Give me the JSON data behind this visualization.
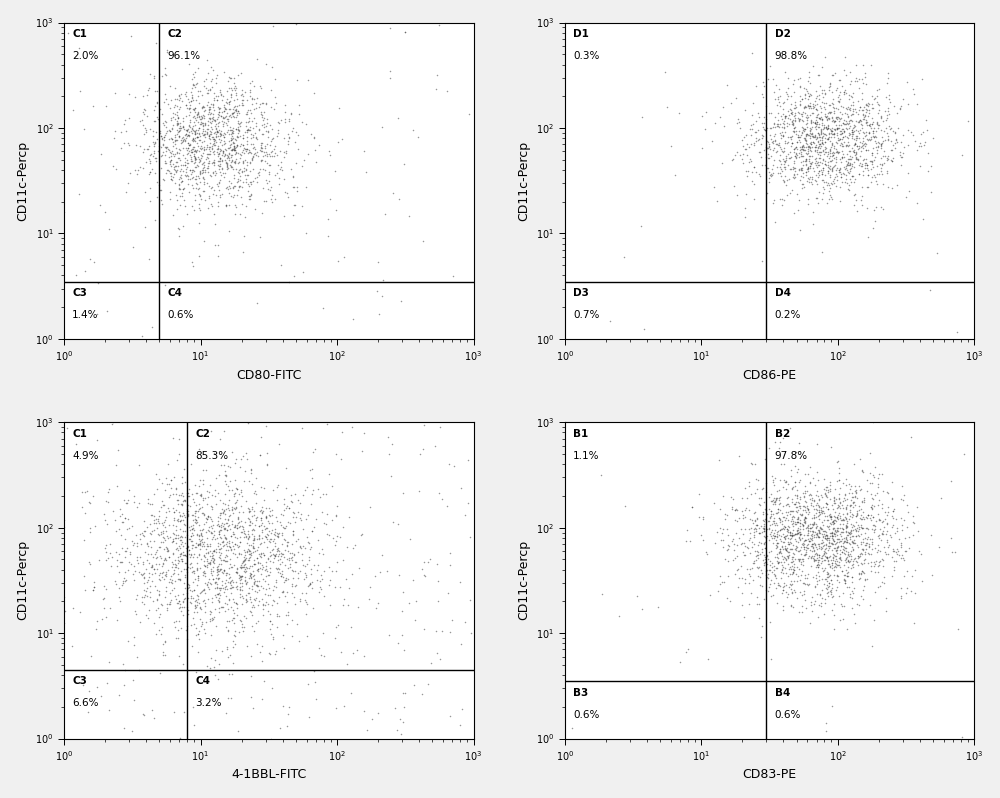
{
  "panels": [
    {
      "row": 0,
      "col": 0,
      "xlabel": "CD80-FITC",
      "ylabel": "CD11c-Percp",
      "quadrant_labels": [
        "C1",
        "C2",
        "C3",
        "C4"
      ],
      "quadrant_pcts": [
        "2.0%",
        "96.1%",
        "1.4%",
        "0.6%"
      ],
      "gate_x": 5.0,
      "gate_y": 3.5,
      "cluster_x_mean_log": 1.1,
      "cluster_x_std_log": 0.28,
      "cluster_y_mean_log": 1.85,
      "cluster_y_std_log": 0.3,
      "n_cluster": 1400,
      "n_bg": 100,
      "xlim": [
        1.0,
        1000.0
      ],
      "ylim": [
        1.0,
        1000.0
      ]
    },
    {
      "row": 0,
      "col": 1,
      "xlabel": "CD86-PE",
      "ylabel": "CD11c-Percp",
      "quadrant_labels": [
        "D1",
        "D2",
        "D3",
        "D4"
      ],
      "quadrant_pcts": [
        "0.3%",
        "98.8%",
        "0.7%",
        "0.2%"
      ],
      "gate_x": 30.0,
      "gate_y": 3.5,
      "cluster_x_mean_log": 1.9,
      "cluster_x_std_log": 0.3,
      "cluster_y_mean_log": 1.9,
      "cluster_y_std_log": 0.28,
      "n_cluster": 1480,
      "n_bg": 20,
      "xlim": [
        1.0,
        1000.0
      ],
      "ylim": [
        1.0,
        1000.0
      ]
    },
    {
      "row": 1,
      "col": 0,
      "xlabel": "4-1BBL-FITC",
      "ylabel": "CD11c-Percp",
      "quadrant_labels": [
        "C1",
        "C2",
        "C3",
        "C4"
      ],
      "quadrant_pcts": [
        "4.9%",
        "85.3%",
        "6.6%",
        "3.2%"
      ],
      "gate_x": 8.0,
      "gate_y": 4.5,
      "cluster_x_mean_log": 1.15,
      "cluster_x_std_log": 0.38,
      "cluster_y_mean_log": 1.75,
      "cluster_y_std_log": 0.38,
      "n_cluster": 1700,
      "n_bg": 300,
      "xlim": [
        1.0,
        1000.0
      ],
      "ylim": [
        1.0,
        1000.0
      ]
    },
    {
      "row": 1,
      "col": 1,
      "xlabel": "CD83-PE",
      "ylabel": "CD11c-Percp",
      "quadrant_labels": [
        "B1",
        "B2",
        "B3",
        "B4"
      ],
      "quadrant_pcts": [
        "1.1%",
        "97.8%",
        "0.6%",
        "0.6%"
      ],
      "gate_x": 30.0,
      "gate_y": 3.5,
      "cluster_x_mean_log": 1.85,
      "cluster_x_std_log": 0.32,
      "cluster_y_mean_log": 1.9,
      "cluster_y_std_log": 0.3,
      "n_cluster": 1760,
      "n_bg": 40,
      "xlim": [
        1.0,
        1000.0
      ],
      "ylim": [
        1.0,
        1000.0
      ]
    }
  ],
  "bg_color": "#f0f0f0",
  "plot_bg_color": "#ffffff",
  "point_color": "#444444",
  "point_size": 1.2,
  "point_alpha": 0.55,
  "label_fontsize": 7.5,
  "pct_fontsize": 7.5,
  "axis_label_fontsize": 9,
  "tick_label_fontsize": 7
}
